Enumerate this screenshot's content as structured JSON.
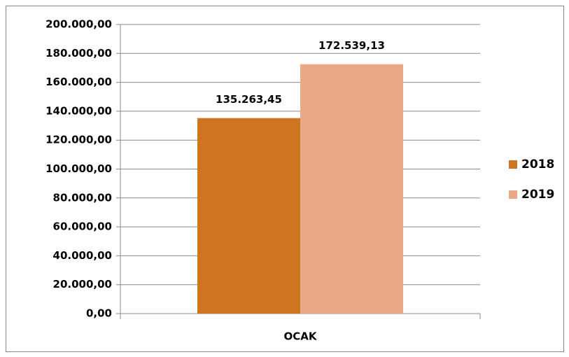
{
  "chart_data": {
    "type": "bar",
    "categories": [
      "OCAK"
    ],
    "series": [
      {
        "name": "2018",
        "color": "#cd7521",
        "values": [
          135263.45
        ],
        "value_labels": [
          "135.263,45"
        ]
      },
      {
        "name": "2019",
        "color": "#ebaa87",
        "values": [
          172539.13
        ],
        "value_labels": [
          "172.539,13"
        ]
      }
    ],
    "ylim": [
      0,
      200000
    ],
    "yticks": [
      {
        "value": 0,
        "label": "0,00"
      },
      {
        "value": 20000,
        "label": "20.000,00"
      },
      {
        "value": 40000,
        "label": "40.000,00"
      },
      {
        "value": 60000,
        "label": "60.000,00"
      },
      {
        "value": 80000,
        "label": "80.000,00"
      },
      {
        "value": 100000,
        "label": "100.000,00"
      },
      {
        "value": 120000,
        "label": "120.000,00"
      },
      {
        "value": 140000,
        "label": "140.000,00"
      },
      {
        "value": 160000,
        "label": "160.000,00"
      },
      {
        "value": 180000,
        "label": "180.000,00"
      },
      {
        "value": 200000,
        "label": "200.000,00"
      }
    ],
    "grid": true,
    "legend": "right"
  }
}
